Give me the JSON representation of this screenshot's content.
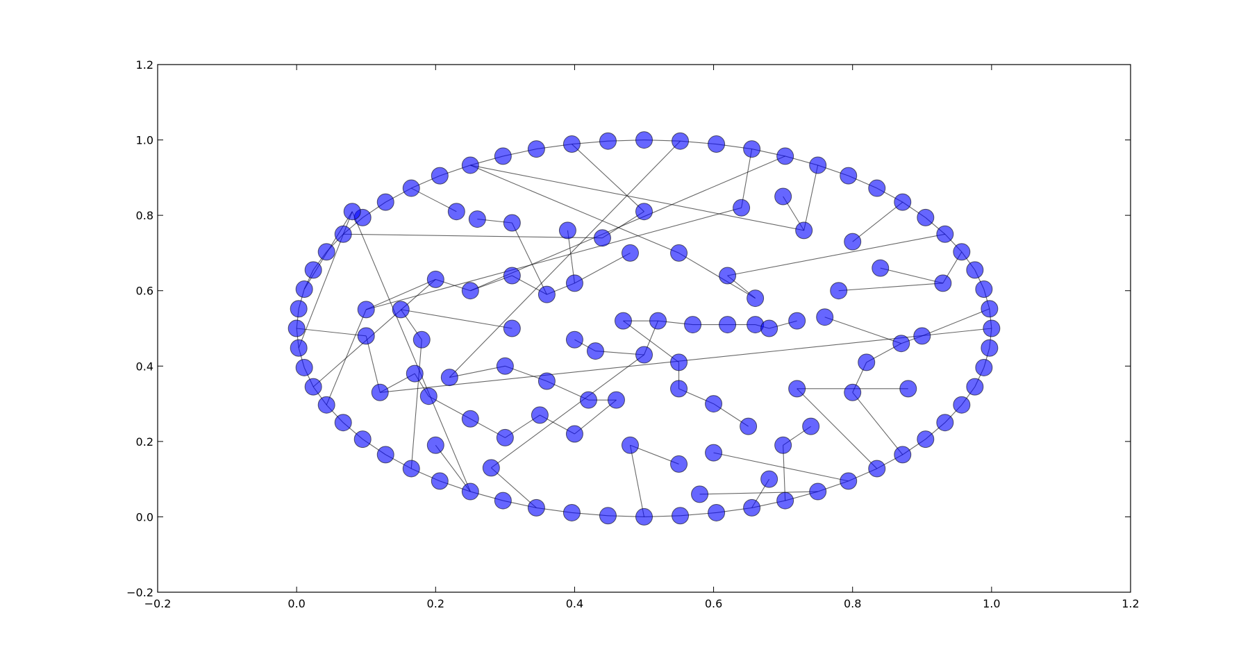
{
  "chart_data": {
    "type": "network",
    "x": [
      1.0,
      0.997,
      0.989,
      0.976,
      0.957,
      0.933,
      0.905,
      0.872,
      0.835,
      0.794,
      0.75,
      0.703,
      0.655,
      0.604,
      0.552,
      0.5,
      0.448,
      0.396,
      0.345,
      0.297,
      0.25,
      0.206,
      0.165,
      0.128,
      0.095,
      0.067,
      0.043,
      0.024,
      0.011,
      0.003,
      0.0,
      0.003,
      0.011,
      0.024,
      0.043,
      0.067,
      0.095,
      0.128,
      0.165,
      0.206,
      0.25,
      0.297,
      0.345,
      0.396,
      0.448,
      0.5,
      0.552,
      0.604,
      0.655,
      0.703,
      0.75,
      0.794,
      0.835,
      0.872,
      0.905,
      0.933,
      0.957,
      0.976,
      0.989,
      0.997,
      0.08,
      0.23,
      0.26,
      0.31,
      0.39,
      0.44,
      0.5,
      0.64,
      0.7,
      0.73,
      0.8,
      0.84,
      0.93,
      0.9,
      0.87,
      0.82,
      0.8,
      0.88,
      0.72,
      0.74,
      0.7,
      0.65,
      0.6,
      0.55,
      0.55,
      0.5,
      0.47,
      0.52,
      0.57,
      0.62,
      0.66,
      0.68,
      0.62,
      0.66,
      0.55,
      0.48,
      0.4,
      0.36,
      0.31,
      0.25,
      0.2,
      0.1,
      0.15,
      0.18,
      0.22,
      0.3,
      0.36,
      0.42,
      0.46,
      0.4,
      0.35,
      0.3,
      0.25,
      0.19,
      0.17,
      0.12,
      0.1,
      0.43,
      0.31,
      0.6,
      0.55,
      0.48,
      0.58,
      0.68,
      0.72,
      0.4,
      0.28,
      0.2,
      0.76,
      0.78
    ],
    "y": [
      0.5,
      0.552,
      0.604,
      0.655,
      0.703,
      0.75,
      0.794,
      0.835,
      0.872,
      0.905,
      0.933,
      0.957,
      0.976,
      0.989,
      0.997,
      1.0,
      0.997,
      0.989,
      0.976,
      0.957,
      0.933,
      0.905,
      0.872,
      0.835,
      0.794,
      0.75,
      0.703,
      0.655,
      0.604,
      0.552,
      0.5,
      0.448,
      0.396,
      0.345,
      0.297,
      0.25,
      0.206,
      0.165,
      0.128,
      0.095,
      0.067,
      0.043,
      0.024,
      0.011,
      0.003,
      0.0,
      0.003,
      0.011,
      0.024,
      0.043,
      0.067,
      0.095,
      0.128,
      0.165,
      0.206,
      0.25,
      0.297,
      0.345,
      0.396,
      0.448,
      0.81,
      0.81,
      0.79,
      0.78,
      0.76,
      0.74,
      0.81,
      0.82,
      0.85,
      0.76,
      0.73,
      0.66,
      0.62,
      0.48,
      0.46,
      0.41,
      0.33,
      0.34,
      0.34,
      0.24,
      0.19,
      0.24,
      0.3,
      0.34,
      0.41,
      0.43,
      0.52,
      0.52,
      0.51,
      0.51,
      0.51,
      0.5,
      0.64,
      0.58,
      0.7,
      0.7,
      0.62,
      0.59,
      0.64,
      0.6,
      0.63,
      0.55,
      0.55,
      0.47,
      0.37,
      0.4,
      0.36,
      0.31,
      0.31,
      0.22,
      0.27,
      0.21,
      0.26,
      0.32,
      0.38,
      0.33,
      0.48,
      0.44,
      0.5,
      0.17,
      0.14,
      0.19,
      0.06,
      0.1,
      0.52,
      0.47,
      0.13,
      0.19,
      0.53,
      0.6
    ],
    "edges": [
      [
        0,
        1
      ],
      [
        1,
        2
      ],
      [
        2,
        3
      ],
      [
        3,
        4
      ],
      [
        4,
        5
      ],
      [
        5,
        6
      ],
      [
        6,
        7
      ],
      [
        7,
        8
      ],
      [
        8,
        9
      ],
      [
        9,
        10
      ],
      [
        10,
        11
      ],
      [
        11,
        12
      ],
      [
        12,
        13
      ],
      [
        13,
        14
      ],
      [
        14,
        15
      ],
      [
        15,
        16
      ],
      [
        16,
        17
      ],
      [
        17,
        18
      ],
      [
        18,
        19
      ],
      [
        19,
        20
      ],
      [
        20,
        21
      ],
      [
        21,
        22
      ],
      [
        22,
        23
      ],
      [
        23,
        24
      ],
      [
        24,
        25
      ],
      [
        25,
        26
      ],
      [
        26,
        27
      ],
      [
        27,
        28
      ],
      [
        28,
        29
      ],
      [
        29,
        30
      ],
      [
        30,
        31
      ],
      [
        31,
        32
      ],
      [
        32,
        33
      ],
      [
        33,
        34
      ],
      [
        34,
        35
      ],
      [
        35,
        36
      ],
      [
        36,
        37
      ],
      [
        37,
        38
      ],
      [
        38,
        39
      ],
      [
        39,
        40
      ],
      [
        40,
        41
      ],
      [
        41,
        42
      ],
      [
        42,
        43
      ],
      [
        43,
        44
      ],
      [
        44,
        45
      ],
      [
        45,
        46
      ],
      [
        46,
        47
      ],
      [
        47,
        48
      ],
      [
        48,
        49
      ],
      [
        49,
        50
      ],
      [
        50,
        51
      ],
      [
        51,
        52
      ],
      [
        52,
        53
      ],
      [
        53,
        54
      ],
      [
        54,
        55
      ],
      [
        55,
        56
      ],
      [
        56,
        57
      ],
      [
        57,
        58
      ],
      [
        58,
        59
      ],
      [
        59,
        0
      ],
      [
        60,
        31
      ],
      [
        60,
        28
      ],
      [
        61,
        22
      ],
      [
        62,
        63
      ],
      [
        63,
        97
      ],
      [
        64,
        96
      ],
      [
        65,
        66
      ],
      [
        66,
        17
      ],
      [
        67,
        12
      ],
      [
        68,
        69
      ],
      [
        69,
        10
      ],
      [
        70,
        7
      ],
      [
        71,
        72
      ],
      [
        72,
        4
      ],
      [
        73,
        1
      ],
      [
        73,
        74
      ],
      [
        74,
        75
      ],
      [
        75,
        76
      ],
      [
        76,
        53
      ],
      [
        77,
        78
      ],
      [
        78,
        52
      ],
      [
        79,
        80
      ],
      [
        80,
        49
      ],
      [
        81,
        82
      ],
      [
        82,
        83
      ],
      [
        83,
        84
      ],
      [
        84,
        86
      ],
      [
        85,
        87
      ],
      [
        86,
        87
      ],
      [
        87,
        88
      ],
      [
        88,
        89
      ],
      [
        89,
        90
      ],
      [
        90,
        91
      ],
      [
        91,
        124
      ],
      [
        92,
        93
      ],
      [
        93,
        94
      ],
      [
        94,
        20
      ],
      [
        95,
        96
      ],
      [
        96,
        97
      ],
      [
        97,
        98
      ],
      [
        98,
        99
      ],
      [
        99,
        100
      ],
      [
        100,
        101
      ],
      [
        101,
        34
      ],
      [
        102,
        103
      ],
      [
        103,
        38
      ],
      [
        104,
        105
      ],
      [
        105,
        106
      ],
      [
        106,
        107
      ],
      [
        107,
        108
      ],
      [
        108,
        109
      ],
      [
        109,
        110
      ],
      [
        110,
        111
      ],
      [
        111,
        112
      ],
      [
        112,
        113
      ],
      [
        113,
        114
      ],
      [
        114,
        115
      ],
      [
        115,
        116
      ],
      [
        116,
        30
      ],
      [
        117,
        85
      ],
      [
        118,
        102
      ],
      [
        119,
        51
      ],
      [
        120,
        121
      ],
      [
        121,
        45
      ],
      [
        122,
        50
      ],
      [
        123,
        48
      ],
      [
        125,
        117
      ],
      [
        126,
        42
      ],
      [
        127,
        40
      ],
      [
        128,
        74
      ],
      [
        129,
        72
      ],
      [
        60,
        40
      ],
      [
        65,
        25
      ],
      [
        92,
        5
      ],
      [
        101,
        67
      ],
      [
        115,
        0
      ],
      [
        100,
        33
      ],
      [
        85,
        126
      ],
      [
        104,
        14
      ],
      [
        69,
        20
      ],
      [
        99,
        11
      ]
    ],
    "node_color": "#0000ff",
    "edge_color": "#000000",
    "xlim": [
      -0.2,
      1.2
    ],
    "ylim": [
      -0.2,
      1.2
    ],
    "xticks": [
      {
        "value": -0.2,
        "label": "−0.2"
      },
      {
        "value": 0,
        "label": "0.0"
      },
      0.2,
      0.4,
      0.6,
      0.8,
      {
        "value": 1,
        "label": "1.0"
      },
      1.2
    ],
    "yticks": [
      {
        "value": -0.2,
        "label": "−0.2"
      },
      {
        "value": 0,
        "label": "0.0"
      },
      0.2,
      0.4,
      0.6,
      0.8,
      {
        "value": 1,
        "label": "1.0"
      },
      1.2
    ]
  }
}
